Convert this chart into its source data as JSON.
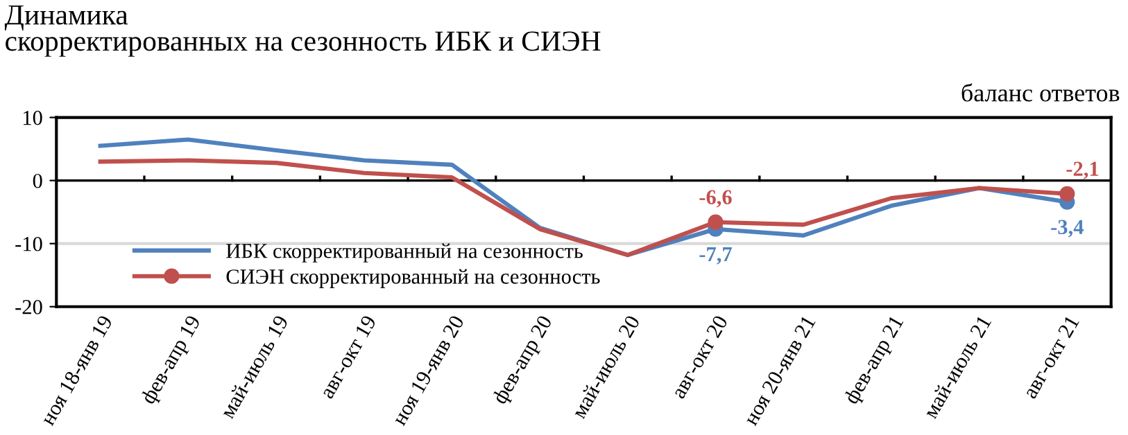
{
  "chart_data": {
    "type": "line",
    "title": "Динамика\nскорректированных на сезонность ИБК и СИЭН",
    "ylabel": "баланс ответов",
    "categories": [
      "ноя 18-янв 19",
      "фев-апр 19",
      "май-июль 19",
      "авг-окт 19",
      "ноя 19-янв 20",
      "фев-апр 20",
      "май-июль 20",
      "авг-окт 20",
      "ноя 20-янв 21",
      "фев-апр 21",
      "май-июль 21",
      "авг-окт 21"
    ],
    "series": [
      {
        "name": "ИБК скорректированный на сезонность",
        "color": "#4f81bd",
        "values": [
          5.5,
          6.5,
          4.8,
          3.2,
          2.5,
          -7.5,
          -11.8,
          -7.7,
          -8.7,
          -4.0,
          -1.2,
          -3.4
        ],
        "value_labels": [
          null,
          null,
          null,
          null,
          null,
          null,
          null,
          "-7,7",
          null,
          null,
          null,
          "-3,4"
        ]
      },
      {
        "name": "СИЭН скорректированный на сезонность",
        "color": "#c0504d",
        "values": [
          3.0,
          3.2,
          2.8,
          1.2,
          0.5,
          -7.7,
          -11.8,
          -6.6,
          -7.0,
          -2.8,
          -1.2,
          -2.1
        ],
        "value_labels": [
          null,
          null,
          null,
          null,
          null,
          null,
          null,
          "-6,6",
          null,
          null,
          null,
          "-2,1"
        ]
      }
    ],
    "ylim": [
      -20,
      10
    ],
    "yticks": [
      -20,
      -10,
      0,
      10
    ],
    "grid": "y",
    "legend": "bottom left",
    "line_style": "solid"
  }
}
